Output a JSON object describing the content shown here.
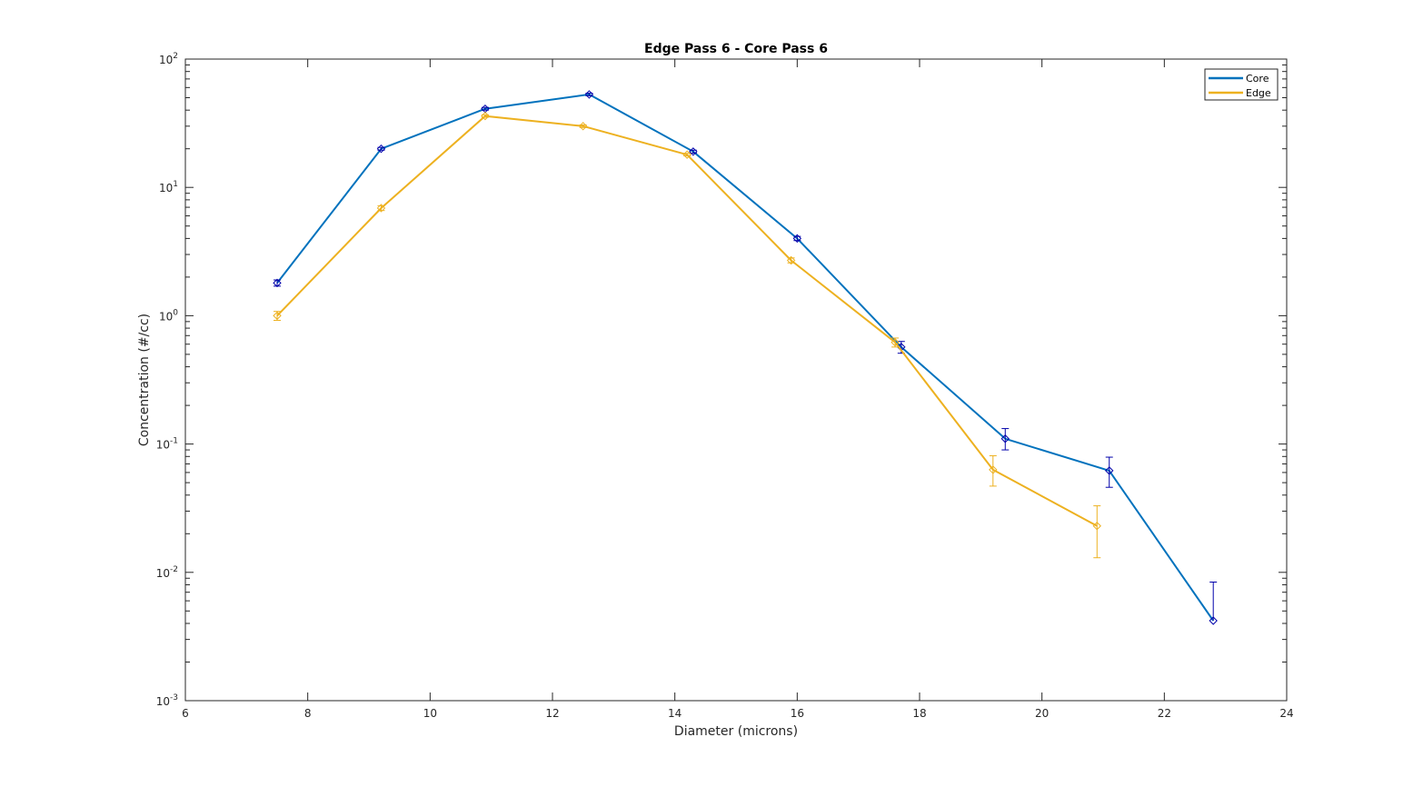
{
  "chart_data": {
    "type": "line",
    "title": "Edge Pass 6 - Core Pass 6",
    "xlabel": "Diameter (microns)",
    "ylabel": "Concentration (#/cc)",
    "xlim": [
      6,
      24
    ],
    "ylim": [
      0.001,
      100
    ],
    "yscale": "log",
    "x_ticks": [
      6,
      8,
      10,
      12,
      14,
      16,
      18,
      20,
      22,
      24
    ],
    "x_tick_labels": [
      "6",
      "8",
      "10",
      "12",
      "14",
      "16",
      "18",
      "20",
      "22",
      "24"
    ],
    "y_ticks": [
      {
        "value": 0.001,
        "base": "10",
        "exp": "-3"
      },
      {
        "value": 0.01,
        "base": "10",
        "exp": "-2"
      },
      {
        "value": 0.1,
        "base": "10",
        "exp": "-1"
      },
      {
        "value": 1,
        "base": "10",
        "exp": "0"
      },
      {
        "value": 10,
        "base": "10",
        "exp": "1"
      },
      {
        "value": 100,
        "base": "10",
        "exp": "2"
      }
    ],
    "grid": false,
    "legend_position": "top-right",
    "series": [
      {
        "name": "Core",
        "color": "#0072BD",
        "marker_color": "#0000AA",
        "marker": "diamond",
        "x": [
          7.5,
          9.2,
          10.9,
          12.6,
          14.3,
          16.0,
          17.7,
          19.4,
          21.1,
          22.8
        ],
        "y": [
          1.8,
          20,
          41,
          53,
          19,
          4.0,
          0.57,
          0.11,
          0.062,
          0.0042
        ],
        "err_low": [
          0.1,
          0.5,
          1.0,
          1.2,
          0.5,
          0.15,
          0.06,
          0.02,
          0.016,
          0
        ],
        "err_high": [
          0.1,
          0.5,
          1.0,
          1.2,
          0.5,
          0.15,
          0.06,
          0.022,
          0.017,
          0.0042
        ]
      },
      {
        "name": "Edge",
        "color": "#EDB120",
        "marker_color": "#EDB120",
        "marker": "diamond",
        "x": [
          7.5,
          9.2,
          10.9,
          12.5,
          14.2,
          15.9,
          17.6,
          19.2,
          20.9
        ],
        "y": [
          1.0,
          6.9,
          36,
          30,
          18,
          2.7,
          0.62,
          0.063,
          0.023
        ],
        "err_low": [
          0.08,
          0.3,
          0.8,
          0.7,
          0.4,
          0.12,
          0.05,
          0.016,
          0.01
        ],
        "err_high": [
          0.08,
          0.3,
          0.8,
          0.7,
          0.4,
          0.12,
          0.05,
          0.018,
          0.01
        ]
      }
    ]
  }
}
